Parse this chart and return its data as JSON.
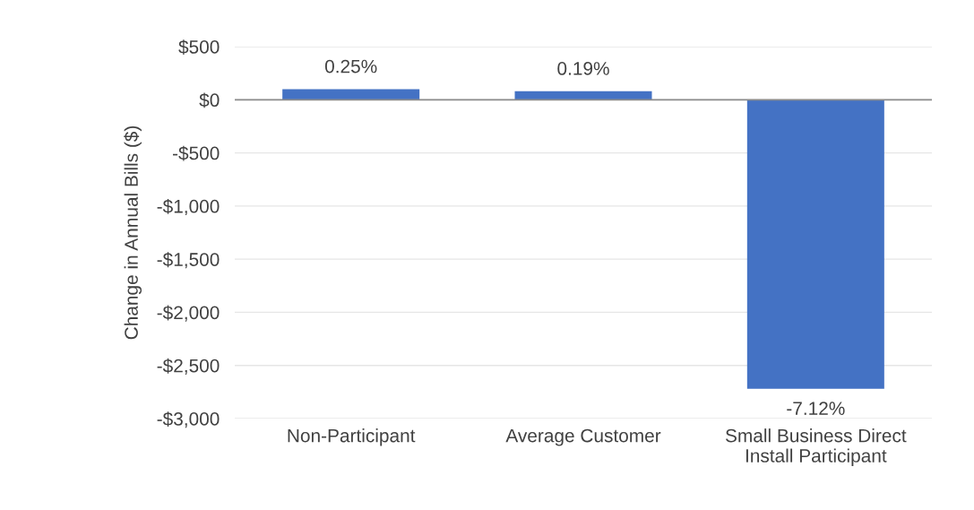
{
  "chart_data": {
    "type": "bar",
    "ylabel": "Change in Annual Bills ($)",
    "categories": [
      "Non-Participant",
      "Average Customer",
      "Small Business Direct\nInstall Participant"
    ],
    "values": [
      100,
      80,
      -2720
    ],
    "annotations": [
      {
        "text": "0.25%",
        "x": "Non-Participant",
        "y": 100
      },
      {
        "text": "0.19%",
        "x": "Average Customer",
        "y": 80
      },
      {
        "text": "-7.12%",
        "x": "Small Business Direct\nInstall Participant",
        "y": -2720
      }
    ],
    "color": "#4472c4",
    "ylim": [
      -3000,
      500
    ],
    "yticks": [
      {
        "value": -3000,
        "label": "-$3,000"
      },
      {
        "value": -2500,
        "label": "-$2,500"
      },
      {
        "value": -2000,
        "label": "-$2,000"
      },
      {
        "value": -1500,
        "label": "-$1,500"
      },
      {
        "value": -1000,
        "label": "-$1,000"
      },
      {
        "value": -500,
        "label": "-$500"
      },
      {
        "value": 0,
        "label": "$0"
      },
      {
        "value": 500,
        "label": "$500"
      }
    ],
    "grid": "y"
  }
}
